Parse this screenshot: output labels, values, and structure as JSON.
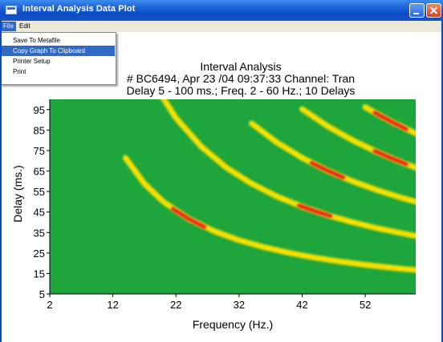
{
  "window": {
    "title": "Interval Analysis Data Plot"
  },
  "menu": {
    "items": [
      "File",
      "Edit"
    ],
    "file_dropdown": [
      "Save To Metafile",
      "Copy Graph To Clipboard",
      "Printer Setup",
      "Print"
    ],
    "selected_index": 1
  },
  "chart_data": {
    "type": "heatmap",
    "title": "Interval Analysis",
    "subtitle_line1": "# BC6494, Apr 23 /04 09:37:33  Channel: Tran",
    "subtitle_line2": "Delay 5 - 100 ms.; Freq. 2 - 60 Hz.; 10 Delays",
    "xlabel": "Frequency (Hz.)",
    "ylabel": "Delay (ms.)",
    "xlim": [
      2,
      60
    ],
    "ylim": [
      5,
      100
    ],
    "xticks": [
      2,
      12,
      22,
      32,
      42,
      52
    ],
    "yticks": [
      5,
      15,
      25,
      35,
      45,
      55,
      65,
      75,
      85,
      95
    ],
    "colors": {
      "background": "#1ea53c",
      "band": "#f5e000",
      "peak": "#e8271e"
    },
    "bands": [
      {
        "k": 1,
        "x": [
          14,
          17,
          20,
          24,
          28,
          32,
          36,
          40,
          44,
          48,
          52,
          56,
          60
        ],
        "peak_x": 24
      },
      {
        "k": 2,
        "x": [
          19,
          22,
          26,
          30,
          34,
          38,
          42,
          46,
          50,
          54,
          58,
          60
        ],
        "peak_x": 44
      },
      {
        "k": 3,
        "x": [
          34,
          38,
          42,
          46,
          50,
          54,
          58,
          60
        ],
        "peak_x": 46
      },
      {
        "k": 4,
        "x": [
          42,
          46,
          50,
          54,
          58,
          60
        ],
        "peak_x": 56
      },
      {
        "k": 5,
        "x": [
          52,
          56,
          60
        ],
        "peak_x": 56
      }
    ]
  }
}
